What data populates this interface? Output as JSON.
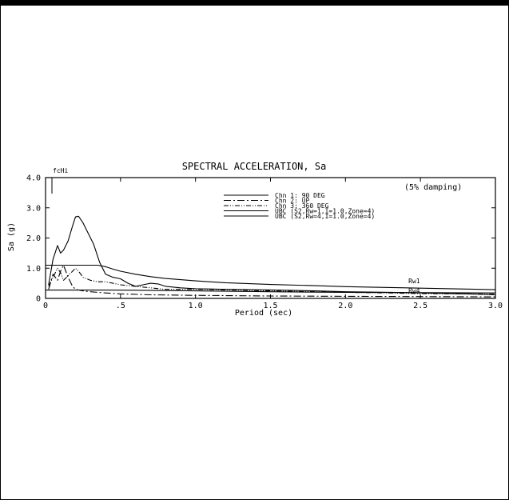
{
  "chart_data": {
    "type": "line",
    "title": "SPECTRAL ACCELERATION, Sa",
    "xlabel": "Period (sec)",
    "ylabel": "Sa (g)",
    "annotation_damping": "(5% damping)",
    "corner_label": "fcHi",
    "xlim": [
      0,
      3.0
    ],
    "ylim": [
      0,
      4.0
    ],
    "x_ticks": [
      {
        "value": 0,
        "label": "0"
      },
      {
        "value": 0.5,
        "label": ".5"
      },
      {
        "value": 1.0,
        "label": "1.0"
      },
      {
        "value": 1.5,
        "label": "1.5"
      },
      {
        "value": 2.0,
        "label": "2.0"
      },
      {
        "value": 2.5,
        "label": "2.5"
      },
      {
        "value": 3.0,
        "label": "3.0"
      }
    ],
    "y_ticks": [
      {
        "value": 0,
        "label": "0"
      },
      {
        "value": 1.0,
        "label": "1.0"
      },
      {
        "value": 2.0,
        "label": "2.0"
      },
      {
        "value": 3.0,
        "label": "3.0"
      },
      {
        "value": 4.0,
        "label": "4.0"
      }
    ],
    "legend_placement": "top-center",
    "series": [
      {
        "name": "Chn 1: 90 DEG",
        "dash": "",
        "x": [
          0.02,
          0.05,
          0.08,
          0.1,
          0.12,
          0.15,
          0.18,
          0.2,
          0.22,
          0.25,
          0.28,
          0.32,
          0.36,
          0.4,
          0.45,
          0.5,
          0.55,
          0.6,
          0.65,
          0.7,
          0.75,
          0.8,
          0.9,
          1.0,
          1.2,
          1.5,
          1.8,
          2.0,
          2.3,
          2.5,
          2.8,
          3.0
        ],
        "values": [
          0.45,
          1.3,
          1.75,
          1.5,
          1.6,
          1.9,
          2.4,
          2.7,
          2.72,
          2.5,
          2.2,
          1.8,
          1.2,
          0.8,
          0.7,
          0.65,
          0.5,
          0.4,
          0.45,
          0.5,
          0.48,
          0.4,
          0.35,
          0.32,
          0.3,
          0.28,
          0.25,
          0.22,
          0.2,
          0.18,
          0.15,
          0.12
        ]
      },
      {
        "name": "Chn 2: UP",
        "dash": "9 3 2 3",
        "x": [
          0.02,
          0.05,
          0.08,
          0.1,
          0.12,
          0.15,
          0.18,
          0.2,
          0.25,
          0.3,
          0.4,
          0.5,
          0.7,
          1.0,
          1.5,
          2.0,
          2.5,
          3.0
        ],
        "values": [
          0.3,
          0.8,
          0.6,
          0.9,
          1.1,
          0.7,
          0.4,
          0.3,
          0.25,
          0.22,
          0.18,
          0.15,
          0.12,
          0.1,
          0.08,
          0.07,
          0.06,
          0.05
        ]
      },
      {
        "name": "Chn 3: 360 DEG",
        "dash": "6 2 1 2 1 2",
        "x": [
          0.02,
          0.05,
          0.08,
          0.1,
          0.12,
          0.15,
          0.18,
          0.2,
          0.22,
          0.25,
          0.3,
          0.35,
          0.4,
          0.5,
          0.6,
          0.7,
          0.8,
          1.0,
          1.2,
          1.5,
          2.0,
          2.3,
          2.5,
          2.8,
          3.0
        ],
        "values": [
          0.4,
          0.7,
          1.0,
          0.85,
          0.6,
          0.75,
          0.9,
          1.0,
          0.9,
          0.7,
          0.6,
          0.55,
          0.55,
          0.45,
          0.4,
          0.35,
          0.3,
          0.3,
          0.28,
          0.25,
          0.2,
          0.18,
          0.16,
          0.15,
          0.14
        ]
      },
      {
        "name": "UBC (S2,Rw=1,I=1.0,Zone=4)",
        "dash": "",
        "x": [
          0,
          0.05,
          0.1,
          0.15,
          0.2,
          0.25,
          0.3,
          0.35,
          0.4,
          0.45,
          0.5,
          0.6,
          0.7,
          0.8,
          1.0,
          1.2,
          1.5,
          1.8,
          2.0,
          2.3,
          2.5,
          2.8,
          3.0
        ],
        "values": [
          1.1,
          1.1,
          1.1,
          1.1,
          1.1,
          1.1,
          1.1,
          1.1,
          1.05,
          0.97,
          0.9,
          0.8,
          0.72,
          0.66,
          0.58,
          0.52,
          0.46,
          0.42,
          0.39,
          0.36,
          0.34,
          0.31,
          0.29
        ]
      },
      {
        "name": "UBC (S2,Rw=4,I=1.0,Zone=4)",
        "dash": "",
        "x": [
          0,
          0.2,
          0.4,
          0.6,
          0.8,
          1.0,
          1.5,
          2.0,
          2.5,
          3.0
        ],
        "values": [
          0.275,
          0.275,
          0.275,
          0.27,
          0.26,
          0.25,
          0.22,
          0.2,
          0.19,
          0.18
        ]
      }
    ],
    "curve_labels": [
      {
        "text": "Rw1",
        "x": 2.42,
        "y": 0.5
      },
      {
        "text": "Rw4",
        "x": 2.42,
        "y": 0.18
      }
    ]
  }
}
